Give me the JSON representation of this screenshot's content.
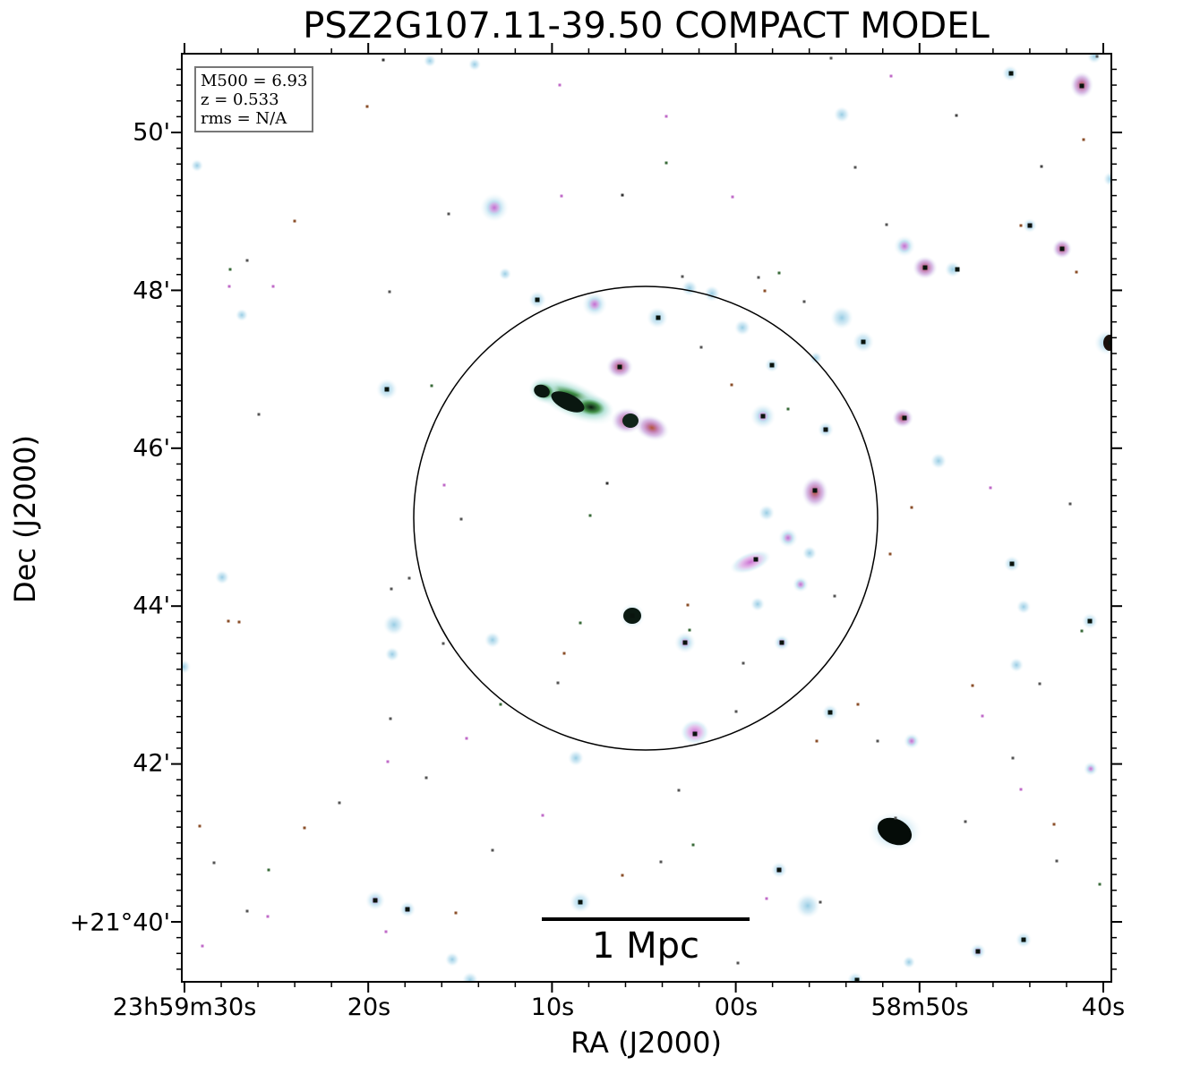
{
  "title": "PSZ2G107.11-39.50 COMPACT MODEL",
  "axes": {
    "xlabel": "RA (J2000)",
    "ylabel": "Dec (J2000)",
    "xticks": [
      "23h59m30s",
      "20s",
      "10s",
      "00s",
      "58m50s",
      "40s"
    ],
    "yticks": [
      "50'",
      "48'",
      "46'",
      "44'",
      "42'",
      "+21°40'"
    ]
  },
  "infobox": {
    "line1": "M500 = 6.93",
    "line2": "z = 0.533",
    "line3": "rms = N/A"
  },
  "scalebar": {
    "label": "1 Mpc"
  },
  "colors": {
    "glow": "#9fd0e6",
    "pink": "#d58ad8",
    "brown": "#b3543a",
    "core": "#06120c",
    "green": "#3a8f3a"
  }
}
